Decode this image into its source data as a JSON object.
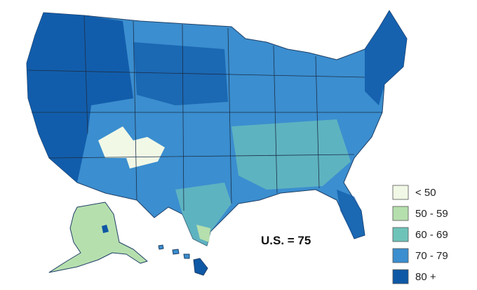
{
  "legend": {
    "items": [
      {
        "label": "< 50",
        "color": "#f1f8e6"
      },
      {
        "label": "50 - 59",
        "color": "#b6dfae"
      },
      {
        "label": "60 - 69",
        "color": "#6ec3b9"
      },
      {
        "label": "70 - 79",
        "color": "#3b8ecf"
      },
      {
        "label": "80 +",
        "color": "#0e58a6"
      }
    ]
  },
  "annotation": "U.S. = 75"
}
